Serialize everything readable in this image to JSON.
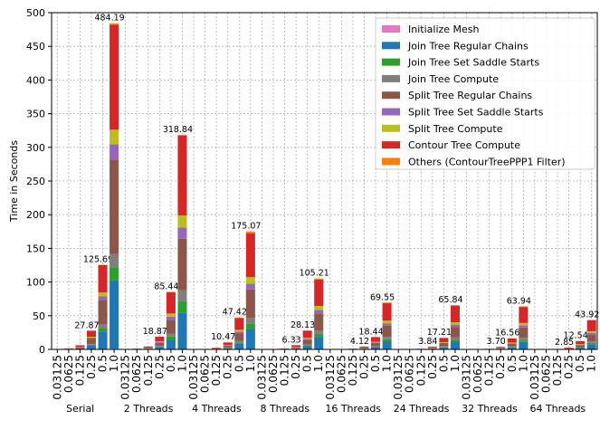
{
  "chart_data": {
    "type": "stacked_bar",
    "ylabel": "Time in Seconds",
    "groups": [
      "Serial",
      "2 Threads",
      "4 Threads",
      "8 Threads",
      "16 Threads",
      "24 Threads",
      "32 Threads",
      "64 Threads"
    ],
    "categories": [
      "0.03125",
      "0.0625",
      "0.125",
      "0.25",
      "0.5",
      "1.0",
      "0.03125",
      "0.0625",
      "0.125",
      "0.25",
      "0.5",
      "1.0",
      "0.03125",
      "0.0625",
      "0.125",
      "0.25",
      "0.5",
      "1.0",
      "0.03125",
      "0.0625",
      "0.125",
      "0.25",
      "0.5",
      "1.0",
      "0.03125",
      "0.0625",
      "0.125",
      "0.25",
      "0.5",
      "1.0",
      "0.03125",
      "0.0625",
      "0.125",
      "0.25",
      "0.5",
      "1.0",
      "0.03125",
      "0.0625",
      "0.125",
      "0.25",
      "0.5",
      "1.0",
      "0.03125",
      "0.0625",
      "0.125",
      "0.25",
      "0.5",
      "1.0"
    ],
    "total_labels": [
      null,
      null,
      null,
      "27.87",
      "125.69",
      "484.19",
      null,
      null,
      null,
      "18.87",
      "85.44",
      "318.84",
      null,
      null,
      null,
      "10.47",
      "47.42",
      "175.07",
      null,
      null,
      null,
      "6.33",
      "28.13",
      "105.21",
      null,
      null,
      null,
      "4.12",
      "18.44",
      "69.55",
      null,
      null,
      null,
      "3.84",
      "17.21",
      "65.84",
      null,
      null,
      null,
      "3.70",
      "16.56",
      "63.94",
      null,
      null,
      null,
      "2.85",
      "12.54",
      "43.92"
    ],
    "series": [
      {
        "name": "Initialize Mesh",
        "color": "#e377c2",
        "values": [
          0.001,
          0.001,
          0.01,
          0.06,
          0.25,
          0.97,
          0.001,
          0.002,
          0.01,
          0.04,
          0.17,
          0.64,
          0.001,
          0.002,
          0.01,
          0.03,
          0.14,
          0.53,
          0.001,
          0.001,
          0.005,
          0.02,
          0.08,
          0.32,
          0.001,
          0.001,
          0.003,
          0.01,
          0.06,
          0.21,
          0.001,
          0.001,
          0.003,
          0.01,
          0.05,
          0.2,
          0.001,
          0.001,
          0.003,
          0.01,
          0.05,
          0.19,
          0.001,
          0.001,
          0.002,
          0.01,
          0.04,
          0.13
        ]
      },
      {
        "name": "Join Tree Regular Chains",
        "color": "#1f77b4",
        "values": [
          0.09,
          0.34,
          1.3,
          5.85,
          26.39,
          101.68,
          0.06,
          0.19,
          0.73,
          3.21,
          14.52,
          54.2,
          0.04,
          0.11,
          0.41,
          1.78,
          8.06,
          29.76,
          0.03,
          0.08,
          0.26,
          1.08,
          4.78,
          17.89,
          0.03,
          0.06,
          0.17,
          0.7,
          3.13,
          11.82,
          0.03,
          0.06,
          0.16,
          0.65,
          2.93,
          11.19,
          0.03,
          0.05,
          0.15,
          0.63,
          2.82,
          10.87,
          0.02,
          0.05,
          0.13,
          0.48,
          2.13,
          7.47
        ]
      },
      {
        "name": "Join Tree Set Saddle Starts",
        "color": "#2ca02c",
        "values": [
          0.02,
          0.06,
          0.25,
          1.11,
          5.03,
          19.37,
          0.02,
          0.06,
          0.23,
          1.0,
          4.53,
          16.9,
          0.01,
          0.03,
          0.11,
          0.47,
          2.13,
          7.88,
          0.01,
          0.02,
          0.07,
          0.28,
          1.27,
          4.73,
          0.01,
          0.02,
          0.05,
          0.19,
          0.83,
          3.13,
          0.01,
          0.01,
          0.04,
          0.17,
          0.77,
          2.96,
          0.01,
          0.01,
          0.04,
          0.17,
          0.75,
          2.88,
          0.01,
          0.01,
          0.03,
          0.13,
          0.56,
          1.98
        ]
      },
      {
        "name": "Join Tree Compute",
        "color": "#7f7f7f",
        "values": [
          0.02,
          0.06,
          0.25,
          1.11,
          5.03,
          19.37,
          0.02,
          0.06,
          0.22,
          0.94,
          4.27,
          15.94,
          0.01,
          0.03,
          0.12,
          0.52,
          2.37,
          8.75,
          0.01,
          0.02,
          0.08,
          0.32,
          1.41,
          5.26,
          0.01,
          0.02,
          0.05,
          0.21,
          0.92,
          3.48,
          0.01,
          0.02,
          0.05,
          0.19,
          0.86,
          3.29,
          0.01,
          0.02,
          0.05,
          0.19,
          0.83,
          3.2,
          0.01,
          0.01,
          0.04,
          0.14,
          0.63,
          2.2
        ]
      },
      {
        "name": "Split Tree Regular Chains",
        "color": "#8c564b",
        "values": [
          0.13,
          0.46,
          1.8,
          8.08,
          36.45,
          140.42,
          0.08,
          0.26,
          1.03,
          4.53,
          20.51,
          76.52,
          0.06,
          0.16,
          0.58,
          2.51,
          11.38,
          42.02,
          0.05,
          0.11,
          0.36,
          1.52,
          6.75,
          25.25,
          0.04,
          0.08,
          0.24,
          0.99,
          4.43,
          16.69,
          0.04,
          0.08,
          0.23,
          0.92,
          4.13,
          15.8,
          0.04,
          0.08,
          0.22,
          0.89,
          3.97,
          15.35,
          0.03,
          0.07,
          0.18,
          0.68,
          3.01,
          10.54
        ]
      },
      {
        "name": "Split Tree Set Saddle Starts",
        "color": "#9467bd",
        "values": [
          0.02,
          0.08,
          0.29,
          1.31,
          5.91,
          22.76,
          0.02,
          0.06,
          0.23,
          1.0,
          4.53,
          16.9,
          0.01,
          0.03,
          0.12,
          0.52,
          2.37,
          8.75,
          0.01,
          0.02,
          0.08,
          0.32,
          1.41,
          5.26,
          0.01,
          0.02,
          0.05,
          0.21,
          0.92,
          3.48,
          0.01,
          0.02,
          0.05,
          0.19,
          0.86,
          3.29,
          0.01,
          0.02,
          0.05,
          0.19,
          0.83,
          3.2,
          0.01,
          0.01,
          0.04,
          0.14,
          0.63,
          2.2
        ]
      },
      {
        "name": "Split Tree Compute",
        "color": "#bcbd22",
        "values": [
          0.02,
          0.07,
          0.28,
          1.25,
          5.66,
          21.79,
          0.02,
          0.06,
          0.24,
          1.06,
          4.78,
          17.86,
          0.01,
          0.04,
          0.13,
          0.58,
          2.61,
          9.63,
          0.01,
          0.02,
          0.08,
          0.35,
          1.55,
          5.79,
          0.01,
          0.02,
          0.06,
          0.23,
          1.01,
          3.83,
          0.01,
          0.02,
          0.05,
          0.21,
          0.95,
          3.62,
          0.01,
          0.02,
          0.05,
          0.2,
          0.91,
          3.52,
          0.01,
          0.02,
          0.04,
          0.16,
          0.69,
          2.42
        ]
      },
      {
        "name": "Contour Tree Compute",
        "color": "#d62728",
        "values": [
          0.14,
          0.51,
          1.99,
          8.95,
          40.35,
          155.43,
          0.13,
          0.41,
          1.6,
          7.0,
          31.7,
          118.29,
          0.09,
          0.24,
          0.89,
          3.89,
          17.64,
          65.13,
          0.07,
          0.17,
          0.56,
          2.35,
          10.46,
          39.14,
          0.06,
          0.13,
          0.37,
          1.53,
          6.86,
          25.87,
          0.06,
          0.12,
          0.35,
          1.43,
          6.4,
          24.49,
          0.06,
          0.12,
          0.33,
          1.38,
          6.16,
          23.79,
          0.04,
          0.1,
          0.28,
          1.06,
          4.66,
          16.34
        ]
      },
      {
        "name": "Others (ContourTreePPP1 Filter)",
        "color": "#ff7f0e",
        "values": [
          0.001,
          0.01,
          0.03,
          0.14,
          0.63,
          2.42,
          0.002,
          0.01,
          0.02,
          0.09,
          0.43,
          1.59,
          0.004,
          0.01,
          0.04,
          0.16,
          0.71,
          2.63,
          0.003,
          0.01,
          0.02,
          0.09,
          0.42,
          1.58,
          0.002,
          0.01,
          0.02,
          0.06,
          0.28,
          1.04,
          0.002,
          0.005,
          0.01,
          0.06,
          0.26,
          0.99,
          0.002,
          0.005,
          0.01,
          0.06,
          0.25,
          0.96,
          0.002,
          0.004,
          0.01,
          0.04,
          0.19,
          0.66
        ]
      }
    ],
    "ylim": [
      0,
      500
    ],
    "yticks": [
      0,
      50,
      100,
      150,
      200,
      250,
      300,
      350,
      400,
      450,
      500
    ],
    "grid": true,
    "legend": "upper right"
  }
}
